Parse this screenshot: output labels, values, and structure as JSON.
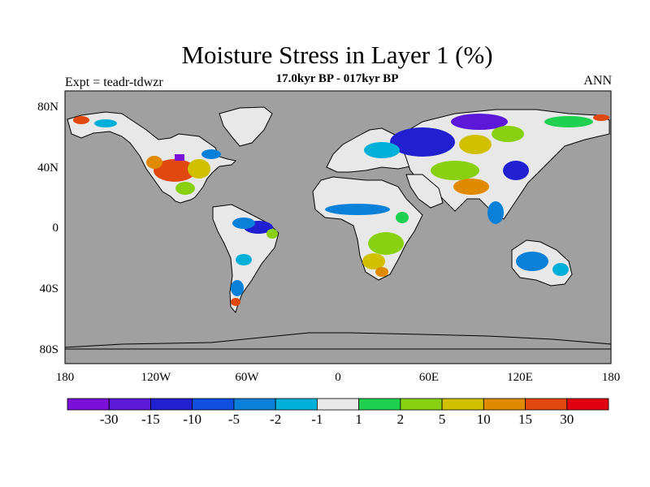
{
  "header": {
    "title": "Moisture Stress in Layer 1 (%)",
    "subtitle": "17.0kyr BP - 017kyr BP",
    "experiment": "Expt = teadr-tdwzr",
    "season": "ANN"
  },
  "map": {
    "projection": "cylindrical-equidistant",
    "lon_range": [
      -180,
      180
    ],
    "lat_range": [
      -90,
      90
    ],
    "ocean_color": "#a0a0a0",
    "y_ticks": [
      "80N",
      "40N",
      "0",
      "40S",
      "80S"
    ],
    "x_ticks": [
      "180",
      "120W",
      "60W",
      "0",
      "60E",
      "120E",
      "180"
    ]
  },
  "colorbar": {
    "colors": [
      "#7b10d8",
      "#5b18d8",
      "#2020d0",
      "#1050e0",
      "#0a80d8",
      "#00b0d8",
      "#e8e8e8",
      "#20d050",
      "#88d010",
      "#d0c000",
      "#e08a00",
      "#e04810",
      "#e00010"
    ],
    "labels": [
      "-30",
      "-15",
      "-10",
      "-5",
      "-2",
      "-1",
      "1",
      "2",
      "5",
      "10",
      "15",
      "30"
    ]
  }
}
